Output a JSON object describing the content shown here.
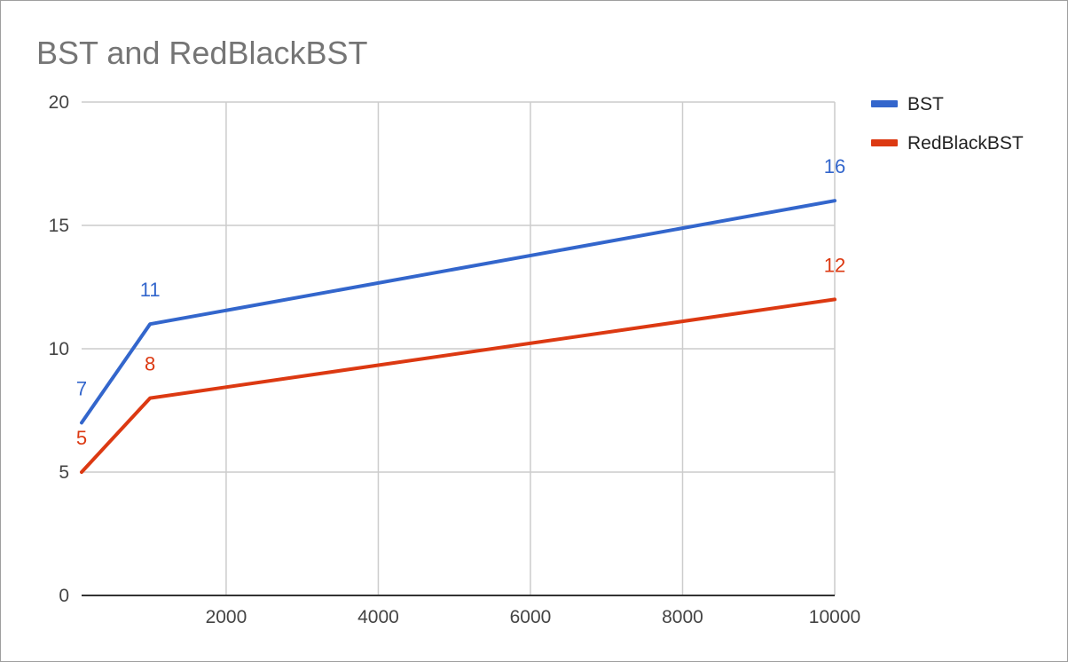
{
  "chart_data": {
    "type": "line",
    "title": "BST and RedBlackBST",
    "xlabel": "",
    "ylabel": "",
    "x": [
      100,
      1000,
      10000
    ],
    "xlim": [
      100,
      10000
    ],
    "ylim": [
      0,
      20
    ],
    "x_ticks": [
      2000,
      4000,
      6000,
      8000,
      10000
    ],
    "y_ticks": [
      0,
      5,
      10,
      15,
      20
    ],
    "grid": true,
    "legend_position": "right",
    "series": [
      {
        "name": "BST",
        "color": "#3366cc",
        "values": [
          7,
          11,
          16
        ],
        "labels": [
          "7",
          "11",
          "16"
        ]
      },
      {
        "name": "RedBlackBST",
        "color": "#dc3912",
        "values": [
          5,
          8,
          12
        ],
        "labels": [
          "5",
          "8",
          "12"
        ]
      }
    ]
  }
}
